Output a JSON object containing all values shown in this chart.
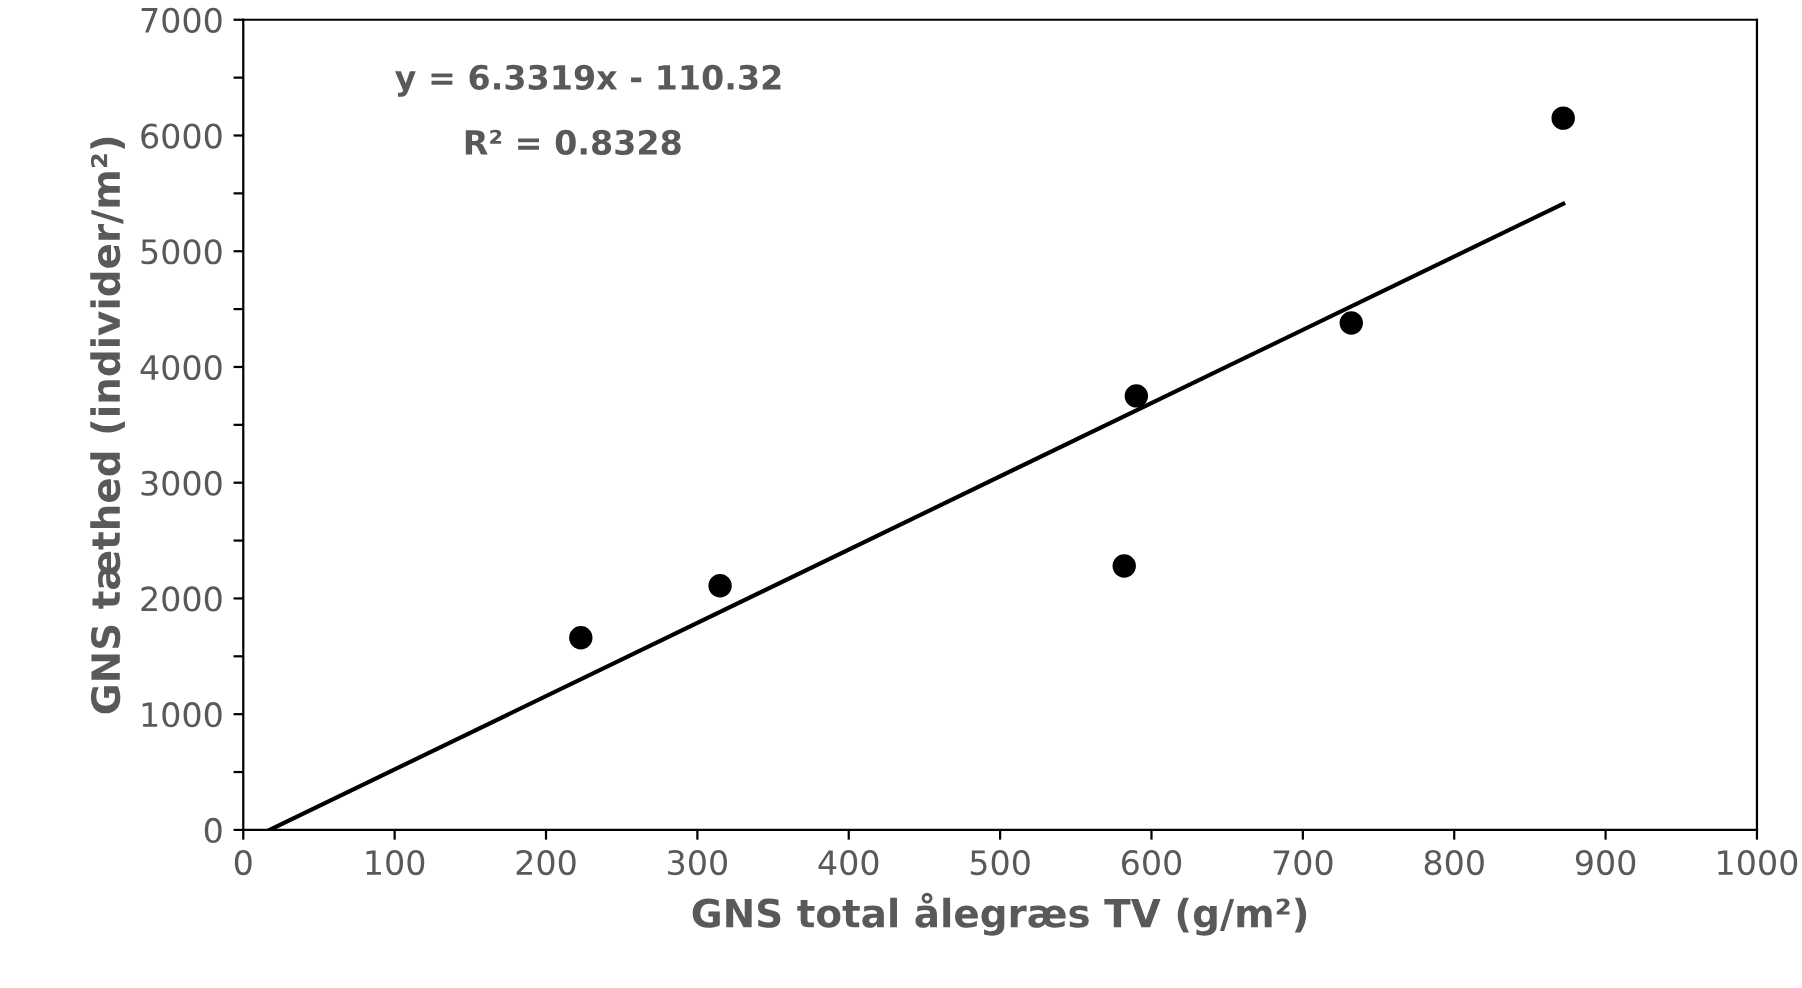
{
  "chart_data": {
    "type": "scatter",
    "xlabel": "GNS total ålegræs TV (g/m²)",
    "ylabel": "GNS tæthed (individer/m²)",
    "annotations": [
      "y = 6.3319x - 110.32",
      "R² = 0.8328"
    ],
    "series": [
      {
        "color": "#000000",
        "marker": "circle",
        "x": [
          223,
          315,
          582,
          590,
          732,
          872
        ],
        "values": [
          1660,
          2110,
          2280,
          3750,
          4380,
          6150
        ]
      },
      {
        "type": "line",
        "color": "#000000",
        "marker": "none",
        "line_style": "solid",
        "x": [
          17.4,
          872
        ],
        "values": [
          0,
          5410
        ]
      }
    ],
    "xlim": [
      0,
      1000
    ],
    "xticks": [
      0,
      100,
      200,
      300,
      400,
      500,
      600,
      700,
      800,
      900,
      1000
    ],
    "ylim": [
      0,
      7000
    ],
    "yticks": [
      0,
      {
        "value": 500,
        "label": null
      },
      1000,
      {
        "value": 1500,
        "label": null
      },
      2000,
      {
        "value": 2500,
        "label": null
      },
      3000,
      {
        "value": 3500,
        "label": null
      },
      4000,
      {
        "value": 4500,
        "label": null
      },
      5000,
      {
        "value": 5500,
        "label": null
      },
      6000,
      {
        "value": 6500,
        "label": null
      },
      7000
    ],
    "grid": false,
    "legend": false
  }
}
